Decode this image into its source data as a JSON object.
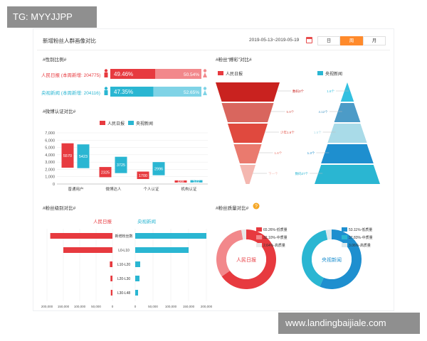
{
  "watermark_tl": "TG: MYYJJPP",
  "watermark_br": "www.landingbaijiale.com",
  "header": {
    "title": "新增粉丝人群画像对比",
    "date_range": "2019-05-13~2019-05-19",
    "segments": [
      "日",
      "周",
      "月"
    ],
    "active_segment": "周"
  },
  "sections": {
    "gender": "#性别比例#",
    "weibo": "#微博认证对比#",
    "fans_funnel": "#粉丝“搏彩”对比#",
    "level": "#粉丝级别对比#",
    "quality": "#粉丝质量对比#"
  },
  "colors": {
    "red": "#e73a3f",
    "red_light": "#f2888b",
    "blue": "#2ab6d2",
    "blue_light": "#7fd3e6",
    "accent": "#ff8a2b"
  },
  "gender": {
    "rows": [
      {
        "label": "人民日报 (本周新增: 204775)",
        "male_pct": "49.46%",
        "female_pct": "50.54%",
        "male_fraction": 0.4946
      },
      {
        "label": "央视新闻 (本周新增: 204116)",
        "male_pct": "47.35%",
        "female_pct": "52.65%",
        "male_fraction": 0.4735
      }
    ]
  },
  "chart_data": [
    {
      "type": "bar",
      "title": "#微博认证对比#",
      "categories": [
        "普通用户",
        "微博达人",
        "个人认证",
        "机构认证"
      ],
      "series": [
        {
          "name": "人民日报",
          "values": [
            5570,
            2325,
            1700,
            488
          ]
        },
        {
          "name": "央视新闻",
          "values": [
            5423,
            3725,
            2996,
            522
          ]
        }
      ],
      "ylim": [
        0,
        7000
      ],
      "yticks": [
        "0",
        "1,000",
        "2,000",
        "3,000",
        "4,000",
        "5,000",
        "6,000",
        "7,000"
      ],
      "legend": "top"
    },
    {
      "type": "bar",
      "title": "#粉丝级别对比#",
      "orientation": "horizontal",
      "categories": [
        "新增粉丝数",
        "L0-L10",
        "L10-L20",
        "L20-L30",
        "L30-L48"
      ],
      "series": [
        {
          "name": "人民日报",
          "values": [
            190000,
            150000,
            8000,
            6000,
            5000
          ]
        },
        {
          "name": "央视新闻",
          "values": [
            200000,
            150000,
            14000,
            12000,
            8000
          ]
        }
      ],
      "left_ticks": [
        "200,000",
        "150,000",
        "100,000",
        "50,000",
        "0"
      ],
      "right_ticks": [
        "0",
        "50,000",
        "100,000",
        "150,000",
        "200,000"
      ]
    },
    {
      "type": "pie",
      "title": "#粉丝质量对比#",
      "charts": [
        {
          "name": "人民日报",
          "slices": [
            {
              "label": "65.26%-低质量",
              "value": 65.26
            },
            {
              "label": "32.10%-中质量",
              "value": 32.1
            },
            {
              "label": "2.64%-高质量",
              "value": 2.64
            }
          ]
        },
        {
          "name": "央视新闻",
          "slices": [
            {
              "label": "53.11%-低质量",
              "value": 53.11
            },
            {
              "label": "37.83%-中质量",
              "value": 37.83
            },
            {
              "label": "3.06%-高质量",
              "value": 3.06
            }
          ]
        }
      ]
    }
  ],
  "funnel": {
    "legend": [
      "人民日报",
      "央视新闻"
    ],
    "left_labels": [
      "数码3个",
      "5.9个",
      "少年1.6个",
      "1.6个",
      "下一个"
    ],
    "right_labels": [
      "1.6个",
      "4.12个",
      "1.5个",
      "1.3个",
      "数码27个"
    ]
  },
  "weibo_legend": [
    "人民日报",
    "央视新闻"
  ],
  "level_names": [
    "人民日报",
    "央视新闻"
  ]
}
